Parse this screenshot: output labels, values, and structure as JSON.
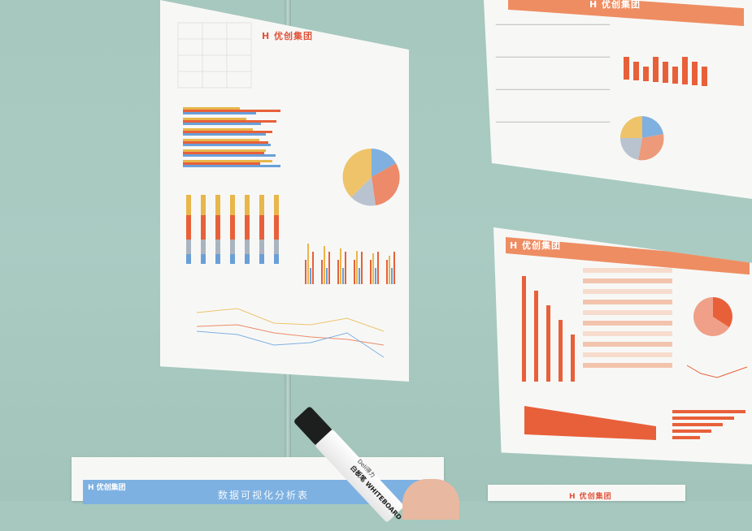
{
  "scene": {
    "description_free": true
  },
  "papers": {
    "logo": "优创集团",
    "bottom_title": "数据可视化分析表"
  },
  "marker": {
    "brand": "Deli得力",
    "label": "白板笔 WHITEBOARD"
  },
  "colors": {
    "wall": "#a9cbc2",
    "orange": "#e8603a",
    "blue": "#6a9fd8",
    "yellow": "#e8b64a",
    "paper": "#f7f8f6"
  }
}
